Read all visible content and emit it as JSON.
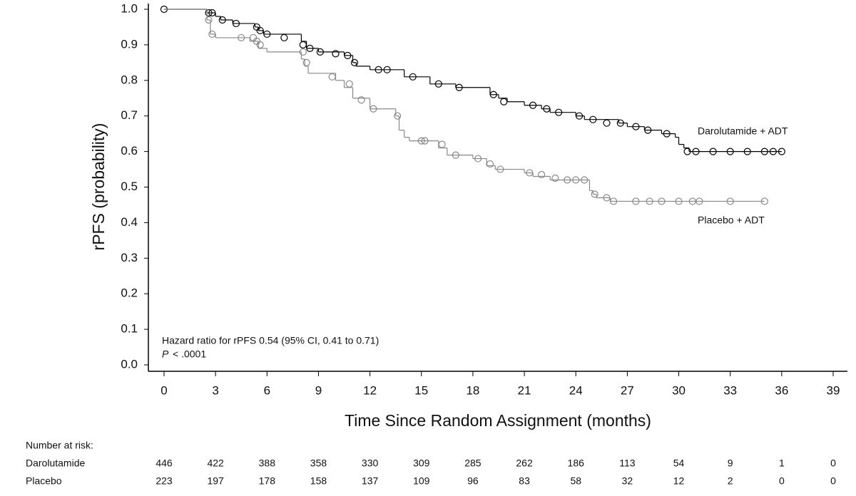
{
  "chart_data": {
    "type": "km",
    "ylabel": "rPFS (probability)",
    "xlabel": "Time Since Random Assignment (months)",
    "xlim": [
      0,
      39
    ],
    "xticks": [
      0,
      3,
      6,
      9,
      12,
      15,
      18,
      21,
      24,
      27,
      30,
      33,
      36,
      39
    ],
    "ylim": [
      0,
      1
    ],
    "yticks": [
      {
        "value": 0,
        "label": "0.0"
      },
      0.1,
      0.2,
      0.3,
      0.4,
      0.5,
      0.6,
      0.7,
      0.8,
      0.9,
      {
        "value": 1,
        "label": "1.0"
      }
    ],
    "annotation": "Hazard ratio for rPFS 0.54 (95% CI, 0.41 to 0.71)",
    "p_label": "P",
    "p_value": "< .0001",
    "series": [
      {
        "name": "Darolutamide + ADT",
        "color": "#000000",
        "x": [
          0,
          2.5,
          3,
          3.3,
          4,
          5.3,
          5.5,
          5.8,
          8,
          8.3,
          9,
          10.5,
          11,
          11.2,
          12,
          14,
          15.5,
          17,
          19,
          19.5,
          20,
          21,
          22,
          22.5,
          24,
          24.5,
          26.5,
          27,
          28,
          29,
          29.8,
          30,
          30.3,
          30.6,
          36
        ],
        "values": [
          1.0,
          0.99,
          0.98,
          0.97,
          0.96,
          0.95,
          0.94,
          0.93,
          0.91,
          0.89,
          0.88,
          0.87,
          0.85,
          0.84,
          0.83,
          0.81,
          0.79,
          0.78,
          0.76,
          0.75,
          0.74,
          0.73,
          0.72,
          0.71,
          0.7,
          0.69,
          0.68,
          0.67,
          0.66,
          0.65,
          0.64,
          0.62,
          0.61,
          0.6,
          0.6
        ],
        "censored": {
          "x": [
            0,
            2.6,
            2.8,
            3.4,
            4.2,
            5.4,
            5.6,
            6,
            7,
            8.1,
            8.5,
            9.1,
            10,
            10.7,
            11.1,
            12.5,
            13,
            14.5,
            16,
            17.2,
            19.2,
            19.8,
            21.5,
            22.3,
            23,
            24.2,
            25,
            25.8,
            26.6,
            27.5,
            28.2,
            29.3,
            30.5,
            31,
            32,
            33,
            34,
            35,
            35.5,
            36
          ],
          "values": [
            1.0,
            0.99,
            0.99,
            0.97,
            0.96,
            0.95,
            0.94,
            0.93,
            0.92,
            0.9,
            0.89,
            0.88,
            0.875,
            0.87,
            0.85,
            0.83,
            0.83,
            0.81,
            0.79,
            0.78,
            0.76,
            0.74,
            0.73,
            0.72,
            0.71,
            0.7,
            0.69,
            0.68,
            0.68,
            0.67,
            0.66,
            0.65,
            0.6,
            0.6,
            0.6,
            0.6,
            0.6,
            0.6,
            0.6,
            0.6
          ]
        }
      },
      {
        "name": "Placebo + ADT",
        "color": "#888888",
        "x": [
          0,
          2.5,
          2.7,
          3,
          5,
          5.5,
          6,
          8,
          8.2,
          8.4,
          10,
          10.5,
          11,
          12,
          13.5,
          13.7,
          14,
          14.3,
          16,
          16.5,
          18,
          18.8,
          19.3,
          21,
          21.5,
          22.5,
          24.8,
          25,
          25.2,
          26,
          35
        ],
        "values": [
          1.0,
          0.97,
          0.93,
          0.92,
          0.91,
          0.89,
          0.88,
          0.86,
          0.84,
          0.82,
          0.8,
          0.78,
          0.75,
          0.72,
          0.7,
          0.66,
          0.64,
          0.63,
          0.61,
          0.59,
          0.58,
          0.56,
          0.55,
          0.54,
          0.53,
          0.52,
          0.49,
          0.48,
          0.47,
          0.46,
          0.46
        ],
        "censored": {
          "x": [
            2.6,
            2.8,
            4.5,
            5.2,
            5.4,
            5.6,
            8.1,
            8.3,
            9.8,
            10.8,
            11.5,
            12.2,
            13.6,
            15,
            15.2,
            16.2,
            17,
            18.3,
            19,
            19.6,
            21.3,
            22,
            22.8,
            23.5,
            24,
            24.5,
            25.1,
            25.8,
            26.2,
            27.5,
            28.3,
            29,
            30,
            30.8,
            31.2,
            33,
            35
          ],
          "values": [
            0.97,
            0.93,
            0.92,
            0.92,
            0.91,
            0.9,
            0.88,
            0.85,
            0.81,
            0.79,
            0.745,
            0.72,
            0.7,
            0.63,
            0.63,
            0.62,
            0.59,
            0.58,
            0.565,
            0.55,
            0.54,
            0.535,
            0.525,
            0.52,
            0.52,
            0.52,
            0.48,
            0.47,
            0.46,
            0.46,
            0.46,
            0.46,
            0.46,
            0.46,
            0.46,
            0.46,
            0.46
          ]
        }
      }
    ],
    "risk_title": "Number at risk:",
    "risk": [
      {
        "name": "Darolutamide",
        "values": [
          446,
          422,
          388,
          358,
          330,
          309,
          285,
          262,
          186,
          113,
          54,
          9,
          1,
          0
        ]
      },
      {
        "name": "Placebo",
        "values": [
          223,
          197,
          178,
          158,
          137,
          109,
          96,
          83,
          58,
          32,
          12,
          2,
          0,
          0
        ]
      }
    ]
  }
}
